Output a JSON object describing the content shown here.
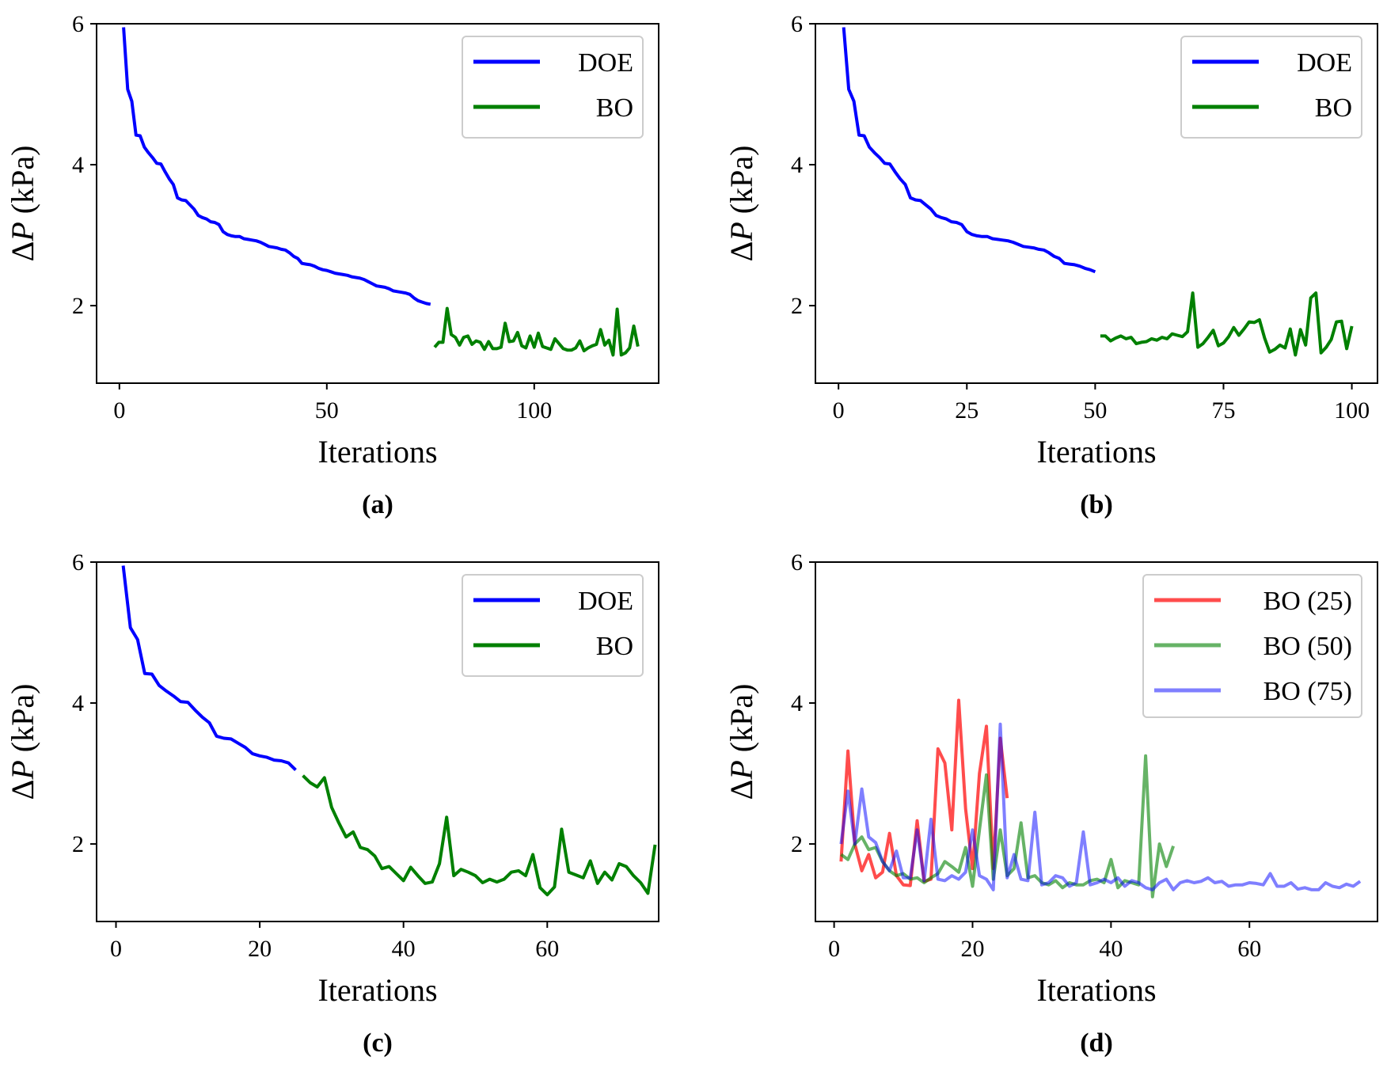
{
  "chart_data": [
    {
      "type": "line",
      "panel_label": "(a)",
      "xlabel": "Iterations",
      "ylabel_prefix": "Δ",
      "ylabel_var": "P",
      "ylabel_unit": " (kPa)",
      "xlim": [
        -5.5,
        130
      ],
      "ylim": [
        0.9,
        6.0
      ],
      "xticks": [
        0,
        50,
        100
      ],
      "yticks": [
        2,
        4,
        6
      ],
      "legend_position": "top-right",
      "series": [
        {
          "name": "DOE",
          "color": "#0000ff",
          "alpha": 1,
          "x": [
            1,
            2,
            3,
            4,
            5,
            6,
            7,
            8,
            9,
            10,
            11,
            12,
            13,
            14,
            15,
            16,
            17,
            18,
            19,
            20,
            21,
            22,
            23,
            24,
            25,
            26,
            27,
            28,
            29,
            30,
            31,
            32,
            33,
            34,
            35,
            36,
            37,
            38,
            39,
            40,
            41,
            42,
            43,
            44,
            45,
            46,
            47,
            48,
            49,
            50,
            51,
            52,
            53,
            54,
            55,
            56,
            57,
            58,
            59,
            60,
            61,
            62,
            63,
            64,
            65,
            66,
            67,
            68,
            69,
            70,
            71,
            72,
            73,
            74,
            75
          ],
          "y": [
            5.95,
            5.07,
            4.9,
            4.42,
            4.41,
            4.25,
            4.17,
            4.1,
            4.02,
            4.01,
            3.9,
            3.8,
            3.72,
            3.53,
            3.5,
            3.49,
            3.43,
            3.37,
            3.28,
            3.25,
            3.23,
            3.19,
            3.18,
            3.15,
            3.05,
            3.01,
            2.99,
            2.98,
            2.98,
            2.95,
            2.94,
            2.93,
            2.92,
            2.9,
            2.87,
            2.84,
            2.83,
            2.82,
            2.8,
            2.79,
            2.75,
            2.7,
            2.67,
            2.6,
            2.59,
            2.58,
            2.56,
            2.53,
            2.51,
            2.5,
            2.48,
            2.46,
            2.45,
            2.44,
            2.43,
            2.41,
            2.4,
            2.39,
            2.37,
            2.34,
            2.31,
            2.28,
            2.27,
            2.26,
            2.24,
            2.21,
            2.2,
            2.19,
            2.18,
            2.16,
            2.11,
            2.07,
            2.05,
            2.03,
            2.02
          ]
        },
        {
          "name": "BO",
          "color": "#008000",
          "alpha": 1,
          "x": [
            76,
            77,
            78,
            79,
            80,
            81,
            82,
            83,
            84,
            85,
            86,
            87,
            88,
            89,
            90,
            91,
            92,
            93,
            94,
            95,
            96,
            97,
            98,
            99,
            100,
            101,
            102,
            103,
            104,
            105,
            106,
            107,
            108,
            109,
            110,
            111,
            112,
            113,
            114,
            115,
            116,
            117,
            118,
            119,
            120,
            121,
            122,
            123,
            124,
            125
          ],
          "y": [
            1.41,
            1.48,
            1.48,
            1.96,
            1.59,
            1.55,
            1.44,
            1.55,
            1.57,
            1.45,
            1.5,
            1.48,
            1.38,
            1.49,
            1.39,
            1.39,
            1.41,
            1.75,
            1.49,
            1.5,
            1.62,
            1.43,
            1.4,
            1.57,
            1.41,
            1.61,
            1.42,
            1.4,
            1.38,
            1.53,
            1.46,
            1.39,
            1.37,
            1.37,
            1.4,
            1.5,
            1.36,
            1.4,
            1.43,
            1.45,
            1.66,
            1.44,
            1.51,
            1.3,
            1.95,
            1.3,
            1.33,
            1.4,
            1.71,
            1.42
          ]
        }
      ]
    },
    {
      "type": "line",
      "panel_label": "(b)",
      "xlabel": "Iterations",
      "ylabel_prefix": "Δ",
      "ylabel_var": "P",
      "ylabel_unit": " (kPa)",
      "xlim": [
        -4.5,
        105
      ],
      "ylim": [
        0.9,
        6.0
      ],
      "xticks": [
        0,
        25,
        50,
        75,
        100
      ],
      "yticks": [
        2,
        4,
        6
      ],
      "legend_position": "top-right",
      "series": [
        {
          "name": "DOE",
          "color": "#0000ff",
          "alpha": 1,
          "x": [
            1,
            2,
            3,
            4,
            5,
            6,
            7,
            8,
            9,
            10,
            11,
            12,
            13,
            14,
            15,
            16,
            17,
            18,
            19,
            20,
            21,
            22,
            23,
            24,
            25,
            26,
            27,
            28,
            29,
            30,
            31,
            32,
            33,
            34,
            35,
            36,
            37,
            38,
            39,
            40,
            41,
            42,
            43,
            44,
            45,
            46,
            47,
            48,
            49,
            50
          ],
          "y": [
            5.95,
            5.07,
            4.9,
            4.42,
            4.41,
            4.25,
            4.17,
            4.1,
            4.02,
            4.01,
            3.9,
            3.8,
            3.72,
            3.53,
            3.5,
            3.49,
            3.43,
            3.37,
            3.28,
            3.25,
            3.23,
            3.19,
            3.18,
            3.15,
            3.05,
            3.01,
            2.99,
            2.98,
            2.98,
            2.95,
            2.94,
            2.93,
            2.92,
            2.9,
            2.87,
            2.84,
            2.83,
            2.82,
            2.8,
            2.79,
            2.75,
            2.7,
            2.67,
            2.6,
            2.59,
            2.58,
            2.56,
            2.53,
            2.51,
            2.48
          ]
        },
        {
          "name": "BO",
          "color": "#008000",
          "alpha": 1,
          "x": [
            51,
            52,
            53,
            54,
            55,
            56,
            57,
            58,
            59,
            60,
            61,
            62,
            63,
            64,
            65,
            66,
            67,
            68,
            69,
            70,
            71,
            72,
            73,
            74,
            75,
            76,
            77,
            78,
            79,
            80,
            81,
            82,
            83,
            84,
            85,
            86,
            87,
            88,
            89,
            90,
            91,
            92,
            93,
            94,
            95,
            96,
            97,
            98,
            99,
            100
          ],
          "y": [
            1.57,
            1.57,
            1.5,
            1.54,
            1.57,
            1.53,
            1.55,
            1.46,
            1.48,
            1.49,
            1.53,
            1.51,
            1.55,
            1.53,
            1.6,
            1.58,
            1.56,
            1.63,
            2.18,
            1.41,
            1.46,
            1.55,
            1.65,
            1.43,
            1.47,
            1.56,
            1.69,
            1.58,
            1.67,
            1.77,
            1.76,
            1.8,
            1.54,
            1.34,
            1.38,
            1.44,
            1.4,
            1.67,
            1.3,
            1.66,
            1.44,
            2.11,
            2.18,
            1.33,
            1.41,
            1.52,
            1.77,
            1.78,
            1.39,
            1.71
          ]
        }
      ]
    },
    {
      "type": "line",
      "panel_label": "(c)",
      "xlabel": "Iterations",
      "ylabel_prefix": "Δ",
      "ylabel_var": "P",
      "ylabel_unit": " (kPa)",
      "xlim": [
        -2.7,
        75.5
      ],
      "ylim": [
        0.9,
        6.0
      ],
      "xticks": [
        0,
        20,
        40,
        60
      ],
      "yticks": [
        2,
        4,
        6
      ],
      "legend_position": "top-right",
      "series": [
        {
          "name": "DOE",
          "color": "#0000ff",
          "alpha": 1,
          "x": [
            1,
            2,
            3,
            4,
            5,
            6,
            7,
            8,
            9,
            10,
            11,
            12,
            13,
            14,
            15,
            16,
            17,
            18,
            19,
            20,
            21,
            22,
            23,
            24,
            25
          ],
          "y": [
            5.95,
            5.07,
            4.9,
            4.42,
            4.41,
            4.25,
            4.17,
            4.1,
            4.02,
            4.01,
            3.9,
            3.8,
            3.72,
            3.53,
            3.5,
            3.49,
            3.43,
            3.37,
            3.28,
            3.25,
            3.23,
            3.19,
            3.18,
            3.15,
            3.05
          ]
        },
        {
          "name": "BO",
          "color": "#008000",
          "alpha": 1,
          "x": [
            26,
            27,
            28,
            29,
            30,
            31,
            32,
            33,
            34,
            35,
            36,
            37,
            38,
            39,
            40,
            41,
            42,
            43,
            44,
            45,
            46,
            47,
            48,
            49,
            50,
            51,
            52,
            53,
            54,
            55,
            56,
            57,
            58,
            59,
            60,
            61,
            62,
            63,
            64,
            65,
            66,
            67,
            68,
            69,
            70,
            71,
            72,
            73,
            74,
            75
          ],
          "y": [
            2.97,
            2.87,
            2.81,
            2.94,
            2.52,
            2.3,
            2.1,
            2.17,
            1.95,
            1.92,
            1.83,
            1.65,
            1.68,
            1.58,
            1.48,
            1.67,
            1.55,
            1.44,
            1.46,
            1.72,
            2.38,
            1.55,
            1.64,
            1.6,
            1.55,
            1.45,
            1.5,
            1.46,
            1.5,
            1.6,
            1.62,
            1.55,
            1.85,
            1.38,
            1.28,
            1.39,
            2.21,
            1.6,
            1.56,
            1.52,
            1.76,
            1.44,
            1.6,
            1.49,
            1.72,
            1.68,
            1.55,
            1.45,
            1.3,
            1.99
          ]
        }
      ]
    },
    {
      "type": "line",
      "panel_label": "(d)",
      "xlabel": "Iterations",
      "ylabel_prefix": "Δ",
      "ylabel_var": "P",
      "ylabel_unit": " (kPa)",
      "xlim": [
        -2.7,
        78.5
      ],
      "ylim": [
        0.9,
        6.0
      ],
      "xticks": [
        0,
        20,
        40,
        60
      ],
      "yticks": [
        2,
        4,
        6
      ],
      "legend_position": "top-right",
      "series": [
        {
          "name": "BO (25)",
          "color": "#ff0000",
          "alpha": 0.7,
          "x": [
            1,
            2,
            3,
            4,
            5,
            6,
            7,
            8,
            9,
            10,
            11,
            12,
            13,
            14,
            15,
            16,
            17,
            18,
            19,
            20,
            21,
            22,
            23,
            24,
            25
          ],
          "y": [
            1.75,
            3.32,
            2.0,
            1.62,
            1.85,
            1.52,
            1.6,
            2.15,
            1.55,
            1.42,
            1.41,
            2.33,
            1.47,
            1.5,
            3.35,
            3.15,
            2.2,
            4.04,
            2.5,
            1.65,
            3.0,
            3.67,
            1.65,
            3.5,
            2.65
          ]
        },
        {
          "name": "BO (50)",
          "color": "#008000",
          "alpha": 0.6,
          "x": [
            1,
            2,
            3,
            4,
            5,
            6,
            7,
            8,
            9,
            10,
            11,
            12,
            13,
            14,
            15,
            16,
            17,
            18,
            19,
            20,
            21,
            22,
            23,
            24,
            25,
            26,
            27,
            28,
            29,
            30,
            31,
            32,
            33,
            34,
            35,
            36,
            37,
            38,
            39,
            40,
            41,
            42,
            43,
            44,
            45,
            46,
            47,
            48,
            49
          ],
          "y": [
            1.85,
            1.78,
            2.0,
            2.1,
            1.92,
            1.95,
            1.75,
            1.62,
            1.55,
            1.58,
            1.5,
            1.52,
            1.45,
            1.52,
            1.58,
            1.75,
            1.68,
            1.6,
            1.95,
            1.4,
            2.2,
            2.98,
            1.5,
            2.2,
            1.55,
            1.65,
            2.3,
            1.52,
            1.55,
            1.45,
            1.42,
            1.48,
            1.38,
            1.45,
            1.42,
            1.42,
            1.48,
            1.5,
            1.45,
            1.78,
            1.38,
            1.48,
            1.45,
            1.42,
            3.25,
            1.25,
            2.0,
            1.68,
            1.97
          ]
        },
        {
          "name": "BO (75)",
          "color": "#0000ff",
          "alpha": 0.5,
          "x": [
            1,
            2,
            3,
            4,
            5,
            6,
            7,
            8,
            9,
            10,
            11,
            12,
            13,
            14,
            15,
            16,
            17,
            18,
            19,
            20,
            21,
            22,
            23,
            24,
            25,
            26,
            27,
            28,
            29,
            30,
            31,
            32,
            33,
            34,
            35,
            36,
            37,
            38,
            39,
            40,
            41,
            42,
            43,
            44,
            45,
            46,
            47,
            48,
            49,
            50,
            51,
            52,
            53,
            54,
            55,
            56,
            57,
            58,
            59,
            60,
            61,
            62,
            63,
            64,
            65,
            66,
            67,
            68,
            69,
            70,
            71,
            72,
            73,
            74,
            75,
            76
          ],
          "y": [
            2.0,
            2.75,
            2.0,
            2.78,
            2.1,
            2.02,
            1.75,
            1.62,
            1.9,
            1.52,
            1.52,
            2.2,
            1.48,
            2.35,
            1.5,
            1.48,
            1.55,
            1.5,
            1.6,
            2.2,
            1.55,
            1.5,
            1.35,
            3.7,
            1.52,
            1.85,
            1.5,
            1.48,
            2.45,
            1.42,
            1.45,
            1.55,
            1.52,
            1.4,
            1.45,
            2.17,
            1.42,
            1.45,
            1.5,
            1.45,
            1.52,
            1.4,
            1.48,
            1.45,
            1.38,
            1.35,
            1.45,
            1.5,
            1.35,
            1.45,
            1.48,
            1.45,
            1.47,
            1.52,
            1.45,
            1.47,
            1.4,
            1.42,
            1.42,
            1.45,
            1.44,
            1.42,
            1.58,
            1.4,
            1.4,
            1.45,
            1.36,
            1.38,
            1.35,
            1.35,
            1.45,
            1.4,
            1.38,
            1.43,
            1.4,
            1.47
          ]
        }
      ]
    }
  ]
}
